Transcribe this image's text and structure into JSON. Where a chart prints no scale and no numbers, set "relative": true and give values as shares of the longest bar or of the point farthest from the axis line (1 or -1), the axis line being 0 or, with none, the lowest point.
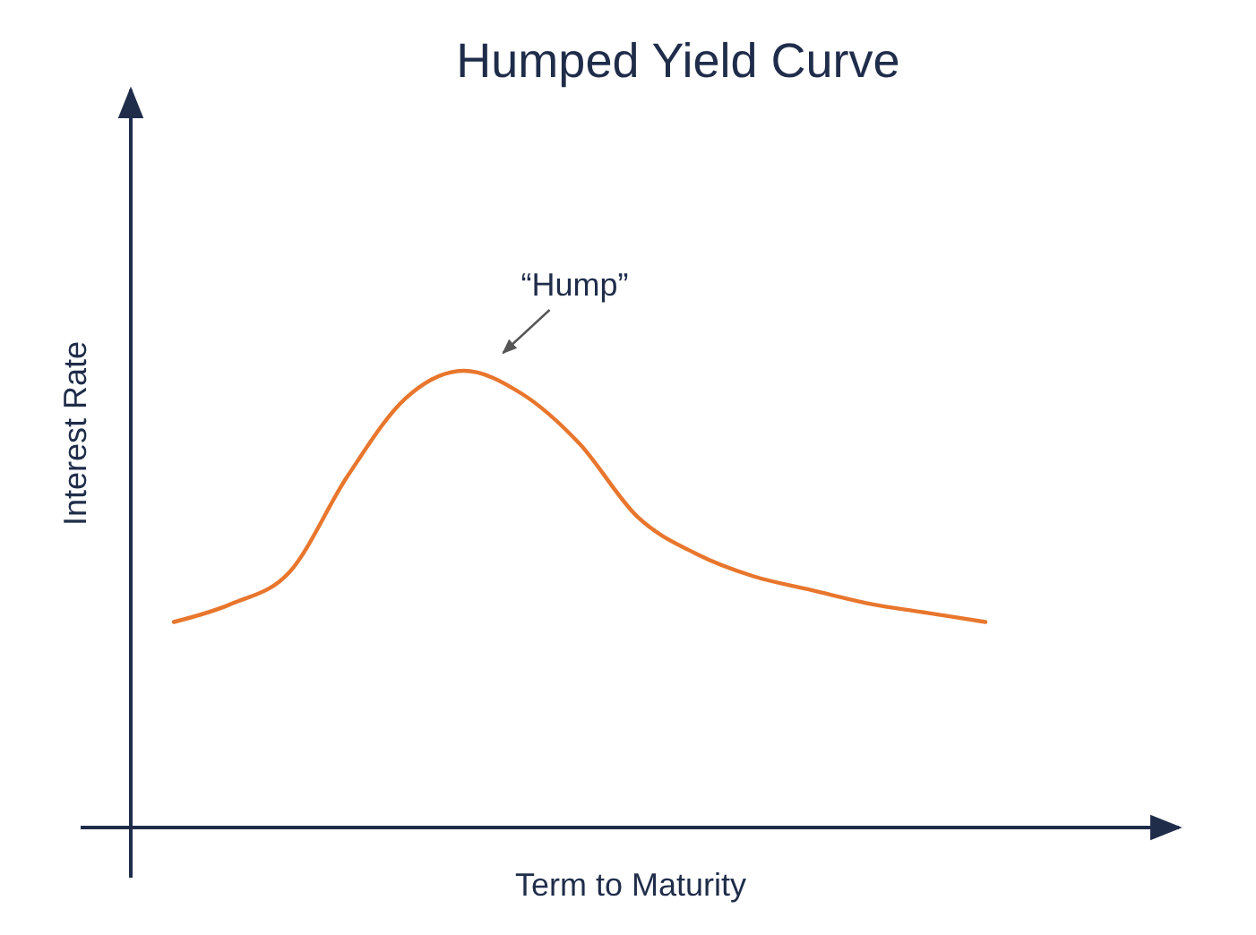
{
  "chart_data": {
    "type": "line",
    "title": "Humped Yield Curve",
    "xlabel": "Term to Maturity",
    "ylabel": "Interest Rate",
    "relative": true,
    "marker": "none",
    "line_style": "solid",
    "categories": [
      null,
      null,
      null,
      null,
      null,
      null,
      null,
      null,
      null,
      null,
      null,
      null,
      null,
      null,
      null
    ],
    "series": [
      {
        "color": "#e8762d",
        "values": [
          0.45,
          0.49,
          0.56,
          0.77,
          0.94,
          1,
          0.95,
          0.84,
          0.68,
          0.6,
          0.55,
          0.52,
          0.49,
          0.47,
          0.45
        ]
      }
    ],
    "annotations": [
      "“Hump”"
    ]
  }
}
